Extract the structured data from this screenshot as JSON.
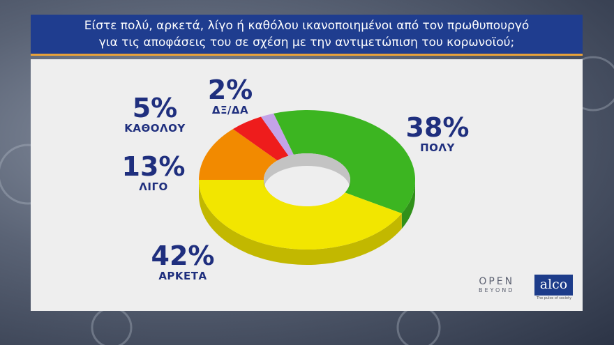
{
  "title": {
    "line1": "Είστε πολύ, αρκετά, λίγο ή καθόλου ικανοποιημένοι από τον πρωθυπουργό",
    "line2": "για τις αποφάσεις του σε σχέση με την αντιμετώπιση του κορωνοϊού;"
  },
  "chart_data": {
    "type": "pie",
    "style": "donut-3d",
    "slices": [
      {
        "key": "poly",
        "label": "ΠΟΛΥ",
        "value": 38,
        "value_label": "38%",
        "color": "#3cb521"
      },
      {
        "key": "arketa",
        "label": "ΑΡΚΕΤΑ",
        "value": 42,
        "value_label": "42%",
        "color": "#f2e600"
      },
      {
        "key": "ligo",
        "label": "ΛΙΓΟ",
        "value": 13,
        "value_label": "13%",
        "color": "#f28a00"
      },
      {
        "key": "katholou",
        "label": "ΚΑΘΟΛΟΥ",
        "value": 5,
        "value_label": "5%",
        "color": "#ee1c1c"
      },
      {
        "key": "dxda",
        "label": "ΔΞ/ΔΑ",
        "value": 2,
        "value_label": "2%",
        "color": "#c4a3e8"
      }
    ]
  },
  "logos": {
    "open_line1": "OPEN",
    "open_line2": "BEYOND",
    "alco": "alco",
    "alco_tagline": "The pulse of society"
  },
  "colors": {
    "title_bg": "#1f3d8f",
    "label_text": "#1f2f7e",
    "panel_bg": "#eeeeee"
  }
}
